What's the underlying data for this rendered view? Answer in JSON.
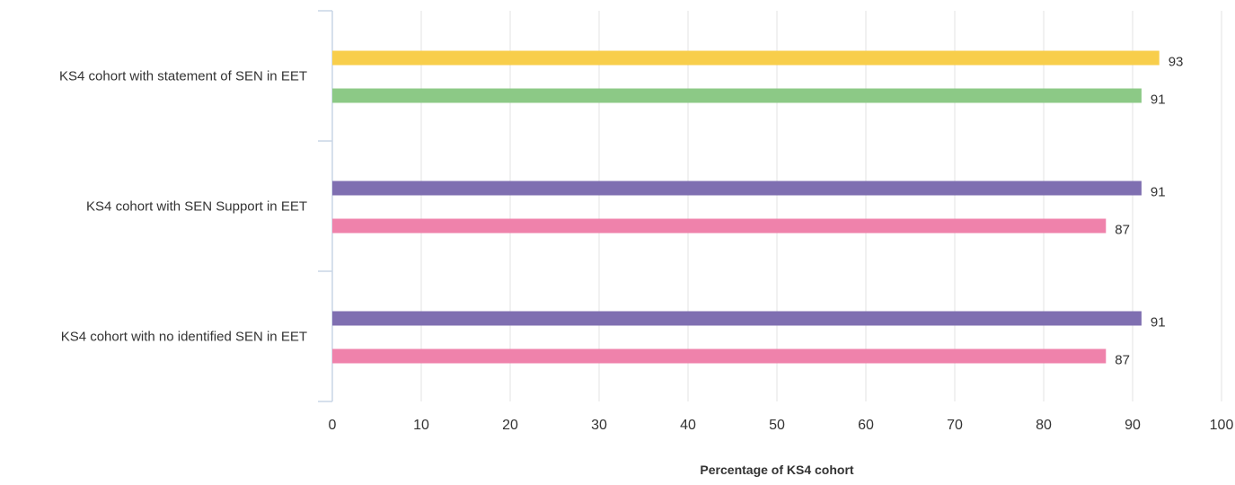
{
  "chart_data": {
    "type": "bar",
    "orientation": "horizontal",
    "xlabel": "Percentage of KS4 cohort",
    "xlim": [
      0,
      100
    ],
    "x_ticks": [
      0,
      10,
      20,
      30,
      40,
      50,
      60,
      70,
      80,
      90,
      100
    ],
    "grid": "vertical",
    "legend": "none",
    "groups": [
      {
        "category": "KS4 cohort with statement of SEN in EET",
        "bars": [
          {
            "value": 93,
            "label": "93",
            "color": "#f8ce4b"
          },
          {
            "value": 91,
            "label": "91",
            "color": "#8cc986"
          }
        ]
      },
      {
        "category": "KS4 cohort with SEN Support in EET",
        "bars": [
          {
            "value": 91,
            "label": "91",
            "color": "#7f6fb1"
          },
          {
            "value": 87,
            "label": "87",
            "color": "#ef82ab"
          }
        ]
      },
      {
        "category": "KS4 cohort with no identified SEN in EET",
        "bars": [
          {
            "value": 91,
            "label": "91",
            "color": "#7f6fb1"
          },
          {
            "value": 87,
            "label": "87",
            "color": "#ef82ab"
          }
        ]
      }
    ]
  }
}
